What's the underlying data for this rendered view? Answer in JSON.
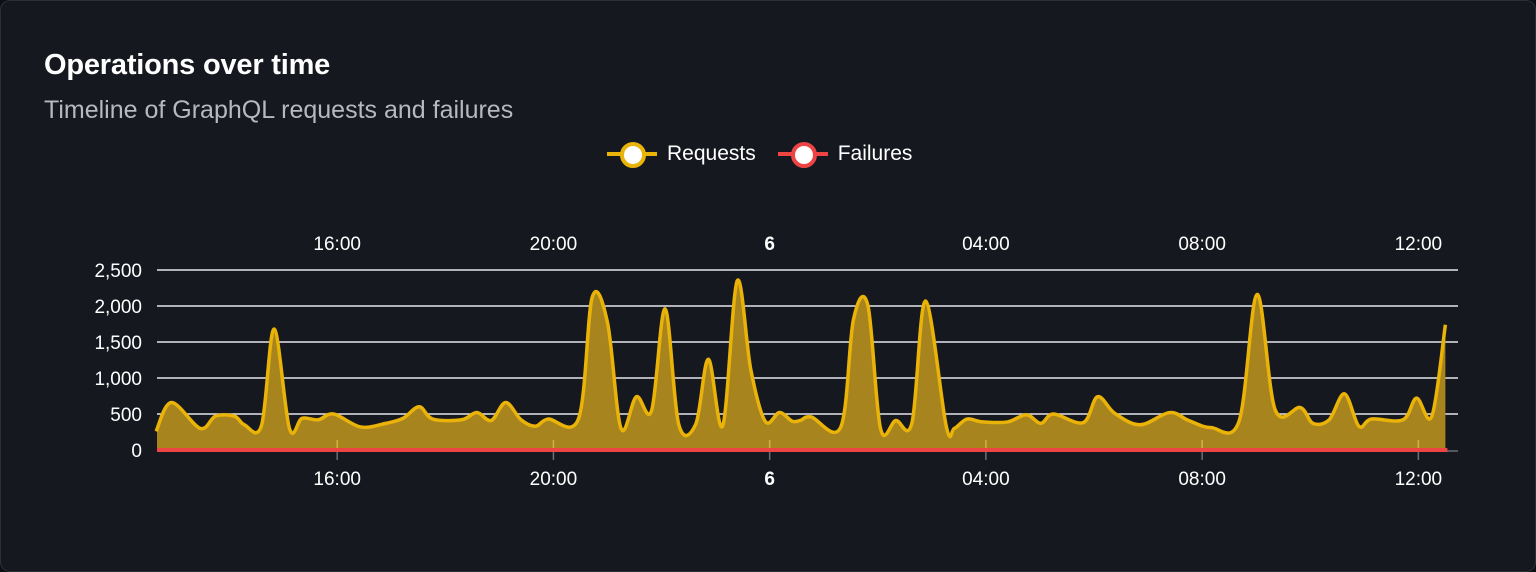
{
  "header": {
    "title": "Operations over time",
    "subtitle": "Timeline of GraphQL requests and failures"
  },
  "chart_data": {
    "type": "area",
    "title": "Operations over time",
    "subtitle": "Timeline of GraphQL requests and failures",
    "legend_position": "top",
    "grid": true,
    "ylim": [
      0,
      2500
    ],
    "yticks": [
      "0",
      "500",
      "1,000",
      "1,500",
      "2,000",
      "2,500"
    ],
    "ytick_values": [
      0,
      500,
      1000,
      1500,
      2000,
      2500
    ],
    "xlim": [
      "5 12:40",
      "6 12:44"
    ],
    "xticks": [
      {
        "label": "16:00",
        "t": "5 16:00"
      },
      {
        "label": "20:00",
        "t": "5 20:00"
      },
      {
        "label": "6",
        "t": "6 00:00",
        "bold": true
      },
      {
        "label": "04:00",
        "t": "6 04:00"
      },
      {
        "label": "08:00",
        "t": "6 08:00"
      },
      {
        "label": "12:00",
        "t": "6 12:00"
      }
    ],
    "x_format": "day HH:MM",
    "series": [
      {
        "name": "Requests",
        "color": "#eab308",
        "fill": "#a8841f",
        "points": [
          [
            "5 12:39",
            260
          ],
          [
            "5 12:56",
            660
          ],
          [
            "5 13:28",
            300
          ],
          [
            "5 13:45",
            470
          ],
          [
            "5 14:06",
            470
          ],
          [
            "5 14:17",
            350
          ],
          [
            "5 14:36",
            340
          ],
          [
            "5 14:50",
            1680
          ],
          [
            "5 15:07",
            300
          ],
          [
            "5 15:21",
            440
          ],
          [
            "5 15:39",
            420
          ],
          [
            "5 15:56",
            500
          ],
          [
            "5 16:26",
            320
          ],
          [
            "5 16:54",
            370
          ],
          [
            "5 17:13",
            440
          ],
          [
            "5 17:31",
            600
          ],
          [
            "5 17:46",
            430
          ],
          [
            "5 18:18",
            420
          ],
          [
            "5 18:35",
            520
          ],
          [
            "5 18:51",
            410
          ],
          [
            "5 19:07",
            660
          ],
          [
            "5 19:24",
            420
          ],
          [
            "5 19:40",
            330
          ],
          [
            "5 19:54",
            430
          ],
          [
            "5 20:28",
            440
          ],
          [
            "5 20:43",
            2120
          ],
          [
            "5 21:00",
            1770
          ],
          [
            "5 21:15",
            300
          ],
          [
            "5 21:32",
            740
          ],
          [
            "5 21:49",
            550
          ],
          [
            "5 22:04",
            1960
          ],
          [
            "5 22:19",
            360
          ],
          [
            "5 22:38",
            360
          ],
          [
            "5 22:52",
            1260
          ],
          [
            "5 23:08",
            340
          ],
          [
            "5 23:24",
            2350
          ],
          [
            "5 23:39",
            1120
          ],
          [
            "5 23:55",
            400
          ],
          [
            "6 00:11",
            520
          ],
          [
            "6 00:25",
            400
          ],
          [
            "6 00:34",
            410
          ],
          [
            "6 00:46",
            460
          ],
          [
            "6 01:19",
            320
          ],
          [
            "6 01:33",
            1810
          ],
          [
            "6 01:49",
            2010
          ],
          [
            "6 02:03",
            300
          ],
          [
            "6 02:20",
            410
          ],
          [
            "6 02:38",
            380
          ],
          [
            "6 02:53",
            2070
          ],
          [
            "6 03:16",
            330
          ],
          [
            "6 03:25",
            300
          ],
          [
            "6 03:39",
            430
          ],
          [
            "6 03:56",
            390
          ],
          [
            "6 04:24",
            390
          ],
          [
            "6 04:45",
            490
          ],
          [
            "6 05:01",
            370
          ],
          [
            "6 05:15",
            500
          ],
          [
            "6 05:48",
            380
          ],
          [
            "6 06:04",
            740
          ],
          [
            "6 06:23",
            510
          ],
          [
            "6 06:51",
            350
          ],
          [
            "6 07:24",
            520
          ],
          [
            "6 07:45",
            410
          ],
          [
            "6 08:10",
            310
          ],
          [
            "6 08:41",
            400
          ],
          [
            "6 09:01",
            2160
          ],
          [
            "6 09:21",
            560
          ],
          [
            "6 09:49",
            590
          ],
          [
            "6 10:03",
            370
          ],
          [
            "6 10:21",
            420
          ],
          [
            "6 10:38",
            780
          ],
          [
            "6 10:54",
            330
          ],
          [
            "6 11:08",
            430
          ],
          [
            "6 11:43",
            420
          ],
          [
            "6 11:58",
            720
          ],
          [
            "6 12:15",
            470
          ],
          [
            "6 12:30",
            1740
          ]
        ]
      },
      {
        "name": "Failures",
        "color": "#ef4444",
        "points": [
          [
            "5 12:40",
            0
          ],
          [
            "6 12:30",
            0
          ]
        ]
      }
    ]
  }
}
